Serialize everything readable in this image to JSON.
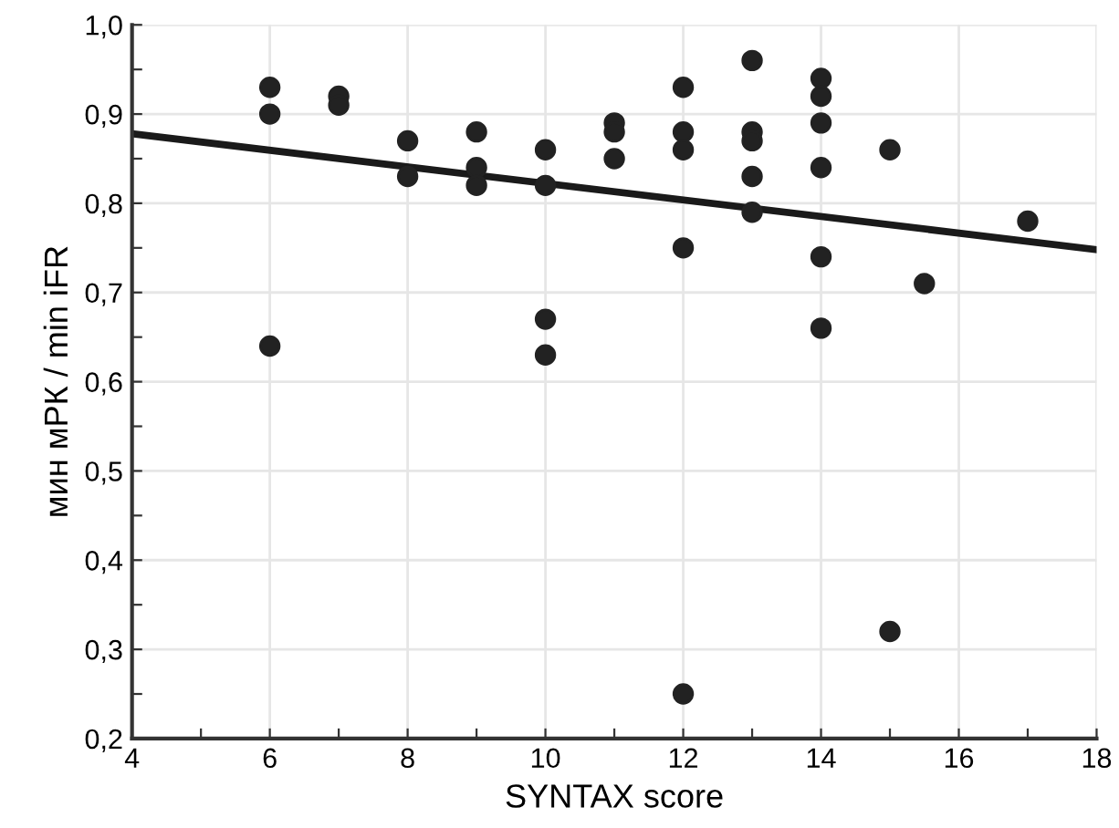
{
  "chart_data": {
    "type": "scatter",
    "xlabel": "SYNTAX score",
    "ylabel": "мин мРК / min iFR",
    "xlim": [
      4,
      18
    ],
    "ylim": [
      0.2,
      1.0
    ],
    "xticks": [
      4,
      {
        "value": 5,
        "label": null
      },
      6,
      {
        "value": 7,
        "label": null
      },
      8,
      {
        "value": 9,
        "label": null
      },
      10,
      {
        "value": 11,
        "label": null
      },
      12,
      {
        "value": 13,
        "label": null
      },
      14,
      {
        "value": 15,
        "label": null
      },
      16,
      {
        "value": 17,
        "label": null
      },
      18
    ],
    "yticks": [
      {
        "value": 0.2,
        "label": "0,2"
      },
      {
        "value": 0.25,
        "label": null
      },
      {
        "value": 0.3,
        "label": "0,3"
      },
      {
        "value": 0.35,
        "label": null
      },
      {
        "value": 0.4,
        "label": "0,4"
      },
      {
        "value": 0.45,
        "label": null
      },
      {
        "value": 0.5,
        "label": "0,5"
      },
      {
        "value": 0.55,
        "label": null
      },
      {
        "value": 0.6,
        "label": "0,6"
      },
      {
        "value": 0.65,
        "label": null
      },
      {
        "value": 0.7,
        "label": "0,7"
      },
      {
        "value": 0.75,
        "label": null
      },
      {
        "value": 0.8,
        "label": "0,8"
      },
      {
        "value": 0.85,
        "label": null
      },
      {
        "value": 0.9,
        "label": "0,9"
      },
      {
        "value": 0.95,
        "label": null
      },
      {
        "value": 1.0,
        "label": "1,0"
      }
    ],
    "grid": true,
    "series": [
      {
        "marker": "circle",
        "color": "#222222",
        "x": [
          6,
          6,
          6,
          7,
          7,
          8,
          8,
          9,
          9,
          9,
          10,
          10,
          10,
          10,
          11,
          11,
          11,
          12,
          12,
          12,
          12,
          12,
          13,
          13,
          13,
          13,
          13,
          14,
          14,
          14,
          14,
          14,
          14,
          15,
          15,
          15.5,
          17
        ],
        "values": [
          0.93,
          0.9,
          0.64,
          0.92,
          0.91,
          0.87,
          0.83,
          0.88,
          0.84,
          0.82,
          0.86,
          0.82,
          0.67,
          0.63,
          0.89,
          0.88,
          0.85,
          0.93,
          0.88,
          0.86,
          0.75,
          0.25,
          0.96,
          0.88,
          0.87,
          0.83,
          0.79,
          0.94,
          0.92,
          0.89,
          0.84,
          0.74,
          0.66,
          0.86,
          0.32,
          0.71,
          0.78
        ]
      },
      {
        "type": "line",
        "color": "#1a1a1a",
        "x": [
          4,
          18
        ],
        "values": [
          0.878,
          0.748
        ],
        "line_style": "solid",
        "marker": "none"
      }
    ]
  }
}
